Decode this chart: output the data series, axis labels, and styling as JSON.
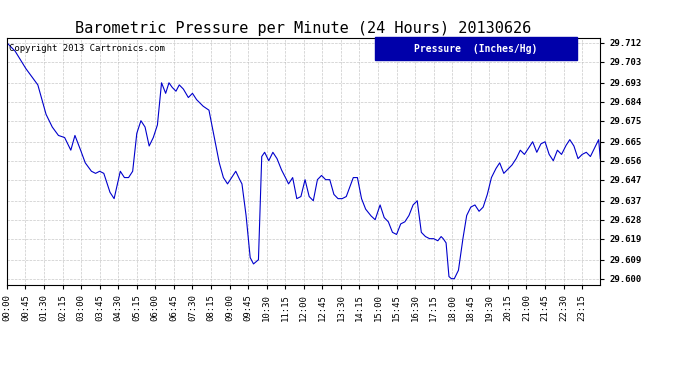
{
  "title": "Barometric Pressure per Minute (24 Hours) 20130626",
  "copyright": "Copyright 2013 Cartronics.com",
  "legend_label": "Pressure  (Inches/Hg)",
  "background_color": "#ffffff",
  "plot_bg_color": "#ffffff",
  "line_color": "#0000cc",
  "grid_color": "#bbbbbb",
  "legend_bg": "#0000aa",
  "legend_fg": "#ffffff",
  "yticks": [
    29.6,
    29.609,
    29.619,
    29.628,
    29.637,
    29.647,
    29.656,
    29.665,
    29.675,
    29.684,
    29.693,
    29.703,
    29.712
  ],
  "ylim": [
    29.597,
    29.7145
  ],
  "xtick_labels": [
    "00:00",
    "00:45",
    "01:30",
    "02:15",
    "03:00",
    "03:45",
    "04:30",
    "05:15",
    "06:00",
    "06:45",
    "07:30",
    "08:15",
    "09:00",
    "09:45",
    "10:30",
    "11:15",
    "12:00",
    "12:45",
    "13:30",
    "14:15",
    "15:00",
    "15:45",
    "16:30",
    "17:15",
    "18:00",
    "18:45",
    "19:30",
    "20:15",
    "21:00",
    "21:45",
    "22:30",
    "23:15"
  ],
  "title_fontsize": 11,
  "axis_fontsize": 6.5,
  "copyright_fontsize": 6.5,
  "waypoints": [
    [
      0,
      29.712
    ],
    [
      20,
      29.708
    ],
    [
      45,
      29.7
    ],
    [
      75,
      29.692
    ],
    [
      95,
      29.678
    ],
    [
      110,
      29.672
    ],
    [
      125,
      29.668
    ],
    [
      140,
      29.667
    ],
    [
      155,
      29.661
    ],
    [
      165,
      29.668
    ],
    [
      175,
      29.663
    ],
    [
      190,
      29.655
    ],
    [
      205,
      29.651
    ],
    [
      215,
      29.65
    ],
    [
      225,
      29.651
    ],
    [
      235,
      29.65
    ],
    [
      250,
      29.641
    ],
    [
      260,
      29.638
    ],
    [
      275,
      29.651
    ],
    [
      285,
      29.648
    ],
    [
      295,
      29.648
    ],
    [
      305,
      29.651
    ],
    [
      315,
      29.669
    ],
    [
      325,
      29.675
    ],
    [
      335,
      29.672
    ],
    [
      345,
      29.663
    ],
    [
      355,
      29.667
    ],
    [
      365,
      29.673
    ],
    [
      375,
      29.693
    ],
    [
      385,
      29.688
    ],
    [
      393,
      29.693
    ],
    [
      400,
      29.691
    ],
    [
      410,
      29.689
    ],
    [
      418,
      29.692
    ],
    [
      428,
      29.69
    ],
    [
      440,
      29.686
    ],
    [
      450,
      29.688
    ],
    [
      460,
      29.685
    ],
    [
      475,
      29.682
    ],
    [
      490,
      29.68
    ],
    [
      505,
      29.665
    ],
    [
      515,
      29.655
    ],
    [
      525,
      29.648
    ],
    [
      535,
      29.645
    ],
    [
      545,
      29.648
    ],
    [
      555,
      29.651
    ],
    [
      562,
      29.648
    ],
    [
      570,
      29.645
    ],
    [
      580,
      29.63
    ],
    [
      590,
      29.61
    ],
    [
      598,
      29.607
    ],
    [
      610,
      29.609
    ],
    [
      618,
      29.658
    ],
    [
      625,
      29.66
    ],
    [
      635,
      29.656
    ],
    [
      645,
      29.66
    ],
    [
      655,
      29.657
    ],
    [
      665,
      29.652
    ],
    [
      673,
      29.649
    ],
    [
      683,
      29.645
    ],
    [
      693,
      29.648
    ],
    [
      703,
      29.638
    ],
    [
      713,
      29.639
    ],
    [
      723,
      29.647
    ],
    [
      733,
      29.639
    ],
    [
      743,
      29.637
    ],
    [
      753,
      29.647
    ],
    [
      763,
      29.649
    ],
    [
      773,
      29.647
    ],
    [
      783,
      29.647
    ],
    [
      793,
      29.64
    ],
    [
      803,
      29.638
    ],
    [
      813,
      29.638
    ],
    [
      823,
      29.639
    ],
    [
      840,
      29.648
    ],
    [
      850,
      29.648
    ],
    [
      860,
      29.638
    ],
    [
      870,
      29.633
    ],
    [
      882,
      29.63
    ],
    [
      893,
      29.628
    ],
    [
      905,
      29.635
    ],
    [
      915,
      29.629
    ],
    [
      925,
      29.627
    ],
    [
      935,
      29.622
    ],
    [
      945,
      29.621
    ],
    [
      955,
      29.626
    ],
    [
      965,
      29.627
    ],
    [
      975,
      29.63
    ],
    [
      985,
      29.635
    ],
    [
      995,
      29.637
    ],
    [
      1005,
      29.622
    ],
    [
      1015,
      29.62
    ],
    [
      1025,
      29.619
    ],
    [
      1035,
      29.619
    ],
    [
      1045,
      29.618
    ],
    [
      1053,
      29.62
    ],
    [
      1058,
      29.619
    ],
    [
      1065,
      29.617
    ],
    [
      1072,
      29.601
    ],
    [
      1078,
      29.6
    ],
    [
      1085,
      29.6
    ],
    [
      1095,
      29.604
    ],
    [
      1105,
      29.618
    ],
    [
      1115,
      29.63
    ],
    [
      1125,
      29.634
    ],
    [
      1135,
      29.635
    ],
    [
      1145,
      29.632
    ],
    [
      1155,
      29.634
    ],
    [
      1165,
      29.64
    ],
    [
      1175,
      29.648
    ],
    [
      1185,
      29.652
    ],
    [
      1195,
      29.655
    ],
    [
      1205,
      29.65
    ],
    [
      1215,
      29.652
    ],
    [
      1225,
      29.654
    ],
    [
      1235,
      29.657
    ],
    [
      1245,
      29.661
    ],
    [
      1255,
      29.659
    ],
    [
      1265,
      29.662
    ],
    [
      1275,
      29.665
    ],
    [
      1285,
      29.66
    ],
    [
      1295,
      29.664
    ],
    [
      1305,
      29.665
    ],
    [
      1315,
      29.659
    ],
    [
      1325,
      29.656
    ],
    [
      1335,
      29.661
    ],
    [
      1345,
      29.659
    ],
    [
      1355,
      29.663
    ],
    [
      1365,
      29.666
    ],
    [
      1375,
      29.663
    ],
    [
      1385,
      29.657
    ],
    [
      1395,
      29.659
    ],
    [
      1405,
      29.66
    ],
    [
      1415,
      29.658
    ],
    [
      1425,
      29.662
    ],
    [
      1435,
      29.666
    ],
    [
      1439,
      29.657
    ]
  ]
}
